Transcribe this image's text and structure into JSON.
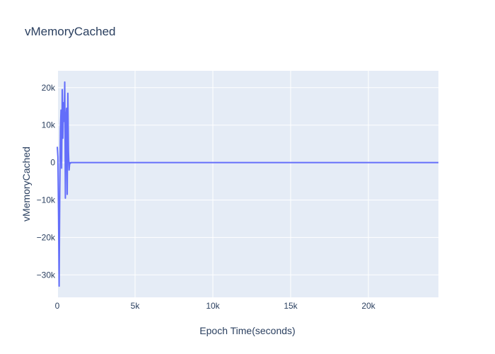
{
  "chart_data": {
    "type": "line",
    "title": "vMemoryCached",
    "xlabel": "Epoch Time(seconds)",
    "ylabel": "vMemoryCached",
    "xlim": [
      0,
      24500
    ],
    "ylim": [
      -36000,
      24500
    ],
    "x_ticks": [
      0,
      5000,
      10000,
      15000,
      20000
    ],
    "x_tick_labels": [
      "0",
      "5k",
      "10k",
      "15k",
      "20k"
    ],
    "y_ticks": [
      -30000,
      -20000,
      -10000,
      0,
      10000,
      20000
    ],
    "y_tick_labels": [
      "−30k",
      "−20k",
      "−10k",
      "0",
      "10k",
      "20k"
    ],
    "grid": true,
    "line_color": "#636efa",
    "series": [
      {
        "x": [
          0,
          40,
          80,
          120,
          160,
          200,
          240,
          280,
          320,
          360,
          400,
          440,
          480,
          520,
          560,
          600,
          640,
          680,
          720,
          760,
          800,
          840,
          880,
          920,
          960,
          1000,
          1100,
          5000,
          10000,
          15000,
          20000,
          24500
        ],
        "y": [
          4200,
          1500,
          -14000,
          -33000,
          -8000,
          9000,
          14000,
          -1500,
          19500,
          6500,
          16000,
          11000,
          21500,
          -9500,
          12000,
          14500,
          -8500,
          18500,
          3000,
          -2000,
          0,
          -200,
          0,
          0,
          0,
          0,
          0,
          0,
          0,
          0,
          0,
          0
        ]
      }
    ]
  }
}
